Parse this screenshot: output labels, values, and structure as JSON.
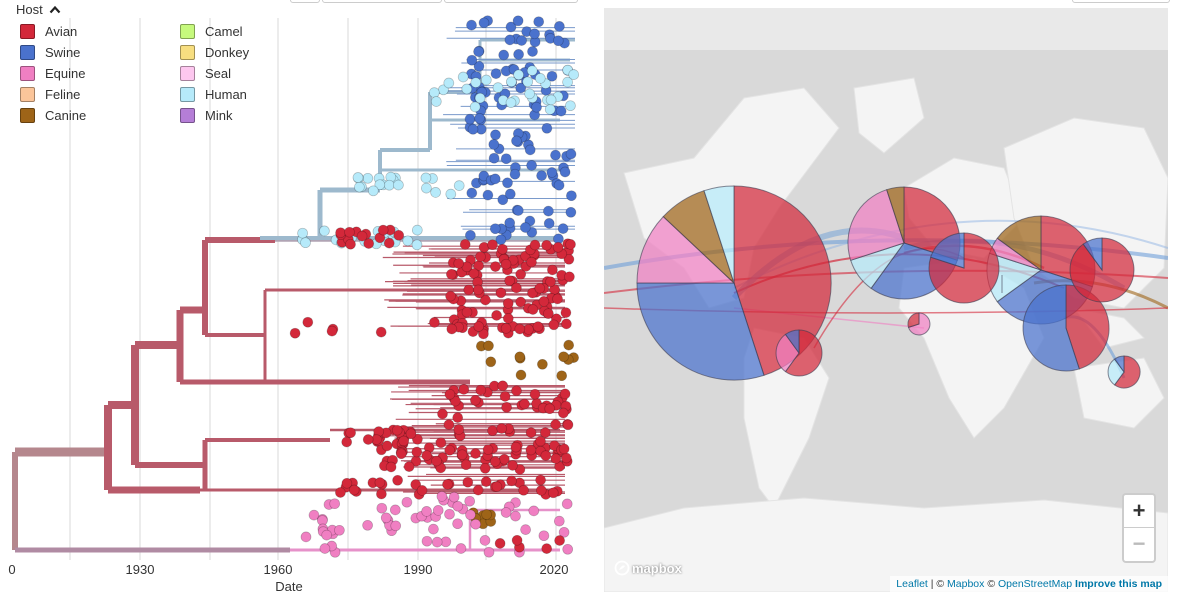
{
  "legend": {
    "title": "Host",
    "collapse_icon": "chevron-up-icon",
    "items": [
      {
        "label": "Avian",
        "color": "#d3283a"
      },
      {
        "label": "Camel",
        "color": "#c6f97d"
      },
      {
        "label": "Swine",
        "color": "#4a72cd"
      },
      {
        "label": "Donkey",
        "color": "#f7de80"
      },
      {
        "label": "Equine",
        "color": "#f07fc2"
      },
      {
        "label": "Seal",
        "color": "#fdc7ef"
      },
      {
        "label": "Feline",
        "color": "#fbc59a"
      },
      {
        "label": "Human",
        "color": "#b6eafa"
      },
      {
        "label": "Canine",
        "color": "#9e6418"
      },
      {
        "label": "Mink",
        "color": "#b57ed7"
      }
    ]
  },
  "tree": {
    "x_axis_label": "Date",
    "ticks": [
      "0",
      "1930",
      "1960",
      "1990",
      "2020"
    ],
    "colors": {
      "branch_root": "#b5878d",
      "branch_avian": "#b85a6a",
      "branch_human": "#9db9cd",
      "branch_equine": "#e691c9",
      "avian": "#d3283a",
      "swine": "#4a72cd",
      "human": "#b6eafa",
      "equine": "#f07fc2",
      "canine": "#9e6418",
      "grid": "#e1e1e1"
    }
  },
  "map": {
    "colors": {
      "land": "#f4f4f4",
      "water": "#d9d9d9",
      "avian": "#d3283a",
      "swine": "#4a72cd",
      "equine": "#f07fc2",
      "canine": "#9e6418",
      "human": "#b6eafa"
    },
    "zoom_in_label": "+",
    "zoom_out_label": "−",
    "logo_text": "mapbox",
    "attribution": {
      "leaflet": "Leaflet",
      "sep1": " | © ",
      "mapbox": "Mapbox",
      "sep2": " © ",
      "osm": "OpenStreetMap",
      "improve": "Improve this map"
    }
  }
}
